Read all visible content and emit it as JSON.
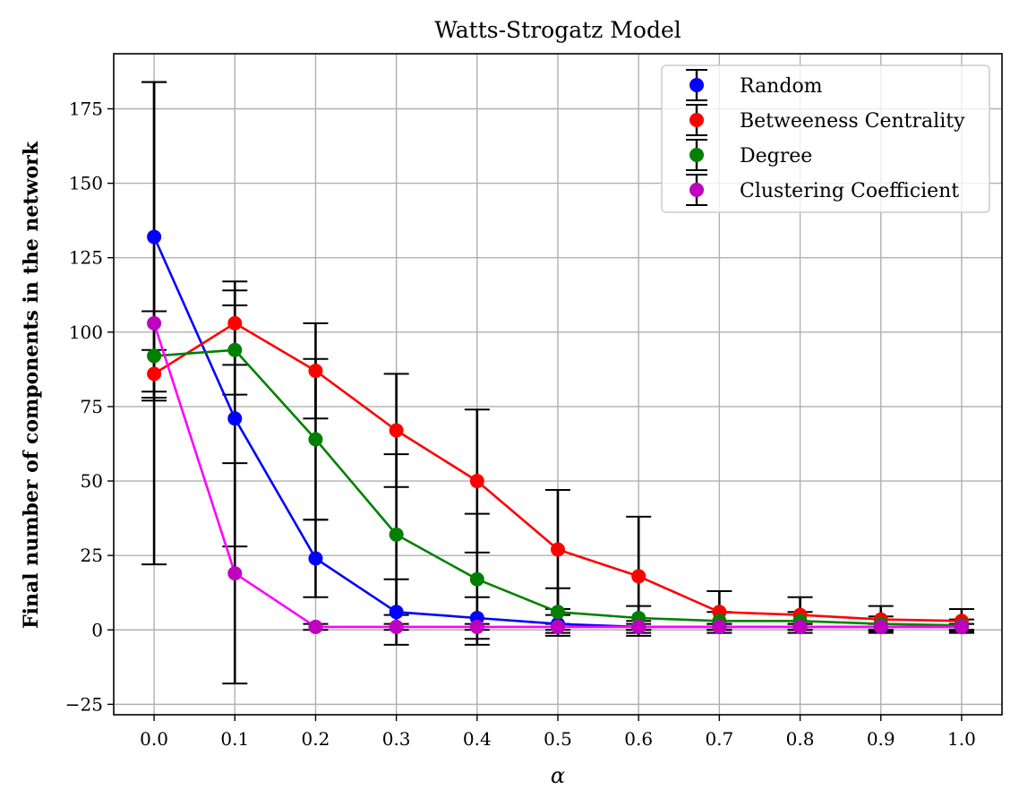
{
  "chart_data": {
    "type": "line",
    "title": "Watts-Strogatz Model",
    "xlabel": "α",
    "ylabel": "Final number of components in the network",
    "x": [
      0.0,
      0.1,
      0.2,
      0.3,
      0.4,
      0.5,
      0.6,
      0.7,
      0.8,
      0.9,
      1.0
    ],
    "xticks": [
      "0.0",
      "0.1",
      "0.2",
      "0.3",
      "0.4",
      "0.5",
      "0.6",
      "0.7",
      "0.8",
      "0.9",
      "1.0"
    ],
    "yticks": [
      -25,
      0,
      25,
      50,
      75,
      100,
      125,
      150,
      175
    ],
    "xlim": [
      -0.05,
      1.05
    ],
    "ylim": [
      -28.5,
      193.5
    ],
    "grid": true,
    "legend_position": "top-right",
    "series": [
      {
        "name": "Random",
        "color": "#0000ff",
        "values": [
          132,
          71,
          24,
          6,
          4,
          2,
          1,
          1,
          1,
          1,
          1
        ],
        "errors": [
          52,
          43,
          13,
          11,
          7,
          3,
          2,
          1,
          1,
          1,
          1
        ]
      },
      {
        "name": "Betweeness Centrality",
        "color": "#ff0000",
        "values": [
          86,
          103,
          87,
          67,
          50,
          27,
          18,
          6,
          5,
          3.5,
          3
        ],
        "errors": [
          8,
          14,
          16,
          19,
          24,
          20,
          20,
          7,
          6,
          4.5,
          4
        ]
      },
      {
        "name": "Degree",
        "color": "#008000",
        "values": [
          92,
          94,
          64,
          32,
          17,
          6,
          4,
          3,
          3,
          2,
          1.5
        ],
        "errors": [
          15,
          15,
          27,
          27,
          22,
          8,
          4,
          3,
          3,
          2.5,
          2
        ]
      },
      {
        "name": "Clustering Coefficient",
        "color": "#bf00bf",
        "line_color": "#ff00ff",
        "values": [
          103,
          19,
          1,
          1,
          1,
          1,
          1,
          1,
          1,
          1,
          1
        ],
        "errors": [
          81,
          37,
          1,
          1,
          1,
          1,
          1,
          1,
          1,
          1,
          1
        ]
      }
    ]
  }
}
